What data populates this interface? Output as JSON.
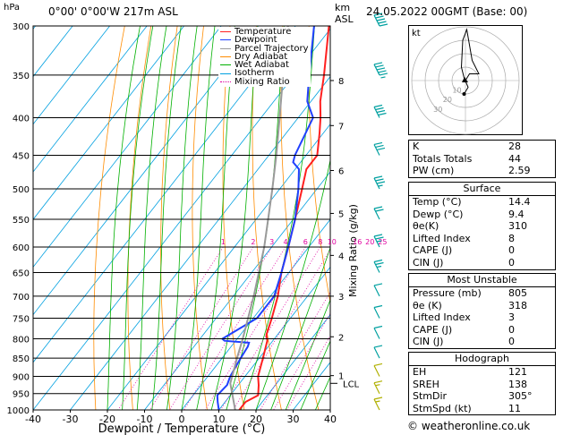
{
  "header": {
    "location": "0°00'  0°00'W  217m  ASL",
    "datetime": "24.05.2022  00GMT  (Base: 00)",
    "hpa_label": "hPa",
    "km_label": "km",
    "asl_label": "ASL"
  },
  "legend": [
    {
      "name": "Temperature",
      "color": "#ff2020"
    },
    {
      "name": "Dewpoint",
      "color": "#2040ff"
    },
    {
      "name": "Parcel Trajectory",
      "color": "#9a9a9a"
    },
    {
      "name": "Dry Adiabat",
      "color": "#ff8c00"
    },
    {
      "name": "Wet Adiabat",
      "color": "#00b000"
    },
    {
      "name": "Isotherm",
      "color": "#00a0e0"
    },
    {
      "name": "Mixing Ratio",
      "color": "#e000a0"
    }
  ],
  "chart_data": {
    "type": "line",
    "subtype": "skew-t log-p diagram",
    "xlabel": "Dewpoint / Temperature (°C)",
    "ylabel": "hPa",
    "right_label": "Mixing Ratio (g/kg)",
    "x_ticks": [
      -40,
      -30,
      -20,
      -10,
      0,
      10,
      20,
      30,
      40
    ],
    "pressure_ticks": [
      300,
      350,
      400,
      450,
      500,
      550,
      600,
      650,
      700,
      750,
      800,
      850,
      900,
      950,
      1000
    ],
    "km_ticks": [
      {
        "km": "8",
        "p": 356
      },
      {
        "km": "7",
        "p": 410
      },
      {
        "km": "6",
        "p": 472
      },
      {
        "km": "5",
        "p": 540
      },
      {
        "km": "4",
        "p": 616
      },
      {
        "km": "3",
        "p": 700
      },
      {
        "km": "2",
        "p": 795
      },
      {
        "km": "1",
        "p": 898
      }
    ],
    "lcl": {
      "label": "LCL",
      "p": 920
    },
    "mixing_ratio_labels": [
      "1",
      "2",
      "3",
      "4",
      "6",
      "8",
      "10",
      "16",
      "20",
      "25"
    ],
    "mixing_ratio_values": [
      1,
      2,
      3,
      4,
      6,
      8,
      10,
      16,
      20,
      25
    ],
    "series": [
      {
        "name": "Temperature",
        "points": [
          [
            1000,
            15.5
          ],
          [
            975,
            15.5
          ],
          [
            955,
            17.5
          ],
          [
            925,
            15.5
          ],
          [
            900,
            13.5
          ],
          [
            850,
            11
          ],
          [
            805,
            8.5
          ],
          [
            790,
            7
          ],
          [
            750,
            5
          ],
          [
            700,
            2
          ],
          [
            650,
            -2
          ],
          [
            600,
            -5.5
          ],
          [
            550,
            -9.5
          ],
          [
            500,
            -14
          ],
          [
            470,
            -17
          ],
          [
            450,
            -17
          ],
          [
            420,
            -21
          ],
          [
            400,
            -24
          ],
          [
            380,
            -27.5
          ],
          [
            350,
            -32
          ],
          [
            300,
            -41
          ]
        ]
      },
      {
        "name": "Dewpoint",
        "points": [
          [
            1000,
            10
          ],
          [
            975,
            8
          ],
          [
            955,
            6.5
          ],
          [
            925,
            7
          ],
          [
            900,
            6
          ],
          [
            850,
            5
          ],
          [
            820,
            4.5
          ],
          [
            810,
            4
          ],
          [
            805,
            -3
          ],
          [
            800,
            -4
          ],
          [
            750,
            1
          ],
          [
            700,
            1
          ],
          [
            650,
            -2
          ],
          [
            600,
            -5.5
          ],
          [
            550,
            -9.5
          ],
          [
            500,
            -15
          ],
          [
            470,
            -19
          ],
          [
            460,
            -22
          ],
          [
            450,
            -23
          ],
          [
            400,
            -26
          ],
          [
            380,
            -31
          ],
          [
            350,
            -36
          ],
          [
            300,
            -45
          ]
        ]
      },
      {
        "name": "Parcel Trajectory",
        "points": [
          [
            1000,
            14.4
          ],
          [
            920,
            7.5
          ],
          [
            850,
            4
          ],
          [
            800,
            1.5
          ],
          [
            700,
            -4.5
          ],
          [
            600,
            -12
          ],
          [
            500,
            -22
          ],
          [
            450,
            -28
          ],
          [
            400,
            -35
          ],
          [
            350,
            -43
          ],
          [
            300,
            -52
          ]
        ]
      }
    ],
    "wind_barbs": [
      {
        "p": 300,
        "speed": 50
      },
      {
        "p": 350,
        "speed": 45
      },
      {
        "p": 400,
        "speed": 40
      },
      {
        "p": 450,
        "speed": 30
      },
      {
        "p": 500,
        "speed": 25
      },
      {
        "p": 550,
        "speed": 20
      },
      {
        "p": 600,
        "speed": 15
      },
      {
        "p": 650,
        "speed": 15
      },
      {
        "p": 700,
        "speed": 10
      },
      {
        "p": 750,
        "speed": 10
      },
      {
        "p": 800,
        "speed": 10
      },
      {
        "p": 850,
        "speed": 10
      },
      {
        "p": 900,
        "speed": 10
      },
      {
        "p": 950,
        "speed": 5
      },
      {
        "p": 1000,
        "speed": 5
      }
    ]
  },
  "hodograph": {
    "unit_label": "kt",
    "ring_labels": [
      "10",
      "20",
      "30"
    ],
    "trace": [
      [
        0,
        0
      ],
      [
        3,
        5
      ],
      [
        10,
        5
      ],
      [
        5,
        15
      ],
      [
        1,
        38
      ],
      [
        -2,
        30
      ],
      [
        -3,
        10
      ],
      [
        -1,
        2
      ],
      [
        2,
        -5
      ],
      [
        -1,
        -10
      ]
    ]
  },
  "indices": {
    "rows": [
      {
        "label": "K",
        "value": "28"
      },
      {
        "label": "Totals Totals",
        "value": "44"
      },
      {
        "label": "PW (cm)",
        "value": "2.59"
      }
    ]
  },
  "surface": {
    "title": "Surface",
    "rows": [
      {
        "label": "Temp (°C)",
        "value": "14.4"
      },
      {
        "label": "Dewp (°C)",
        "value": "9.4"
      },
      {
        "label": "θe(K)",
        "value": "310"
      },
      {
        "label": "Lifted Index",
        "value": "8"
      },
      {
        "label": "CAPE (J)",
        "value": "0"
      },
      {
        "label": "CIN (J)",
        "value": "0"
      }
    ]
  },
  "most_unstable": {
    "title": "Most Unstable",
    "rows": [
      {
        "label": "Pressure (mb)",
        "value": "805"
      },
      {
        "label": "θe (K)",
        "value": "318"
      },
      {
        "label": "Lifted Index",
        "value": "3"
      },
      {
        "label": "CAPE (J)",
        "value": "0"
      },
      {
        "label": "CIN (J)",
        "value": "0"
      }
    ]
  },
  "hodo_table": {
    "title": "Hodograph",
    "rows": [
      {
        "label": "EH",
        "value": "121"
      },
      {
        "label": "SREH",
        "value": "138"
      },
      {
        "label": "StmDir",
        "value": "305°"
      },
      {
        "label": "StmSpd (kt)",
        "value": "11"
      }
    ]
  },
  "footer": {
    "credit": "© weatheronline.co.uk"
  }
}
